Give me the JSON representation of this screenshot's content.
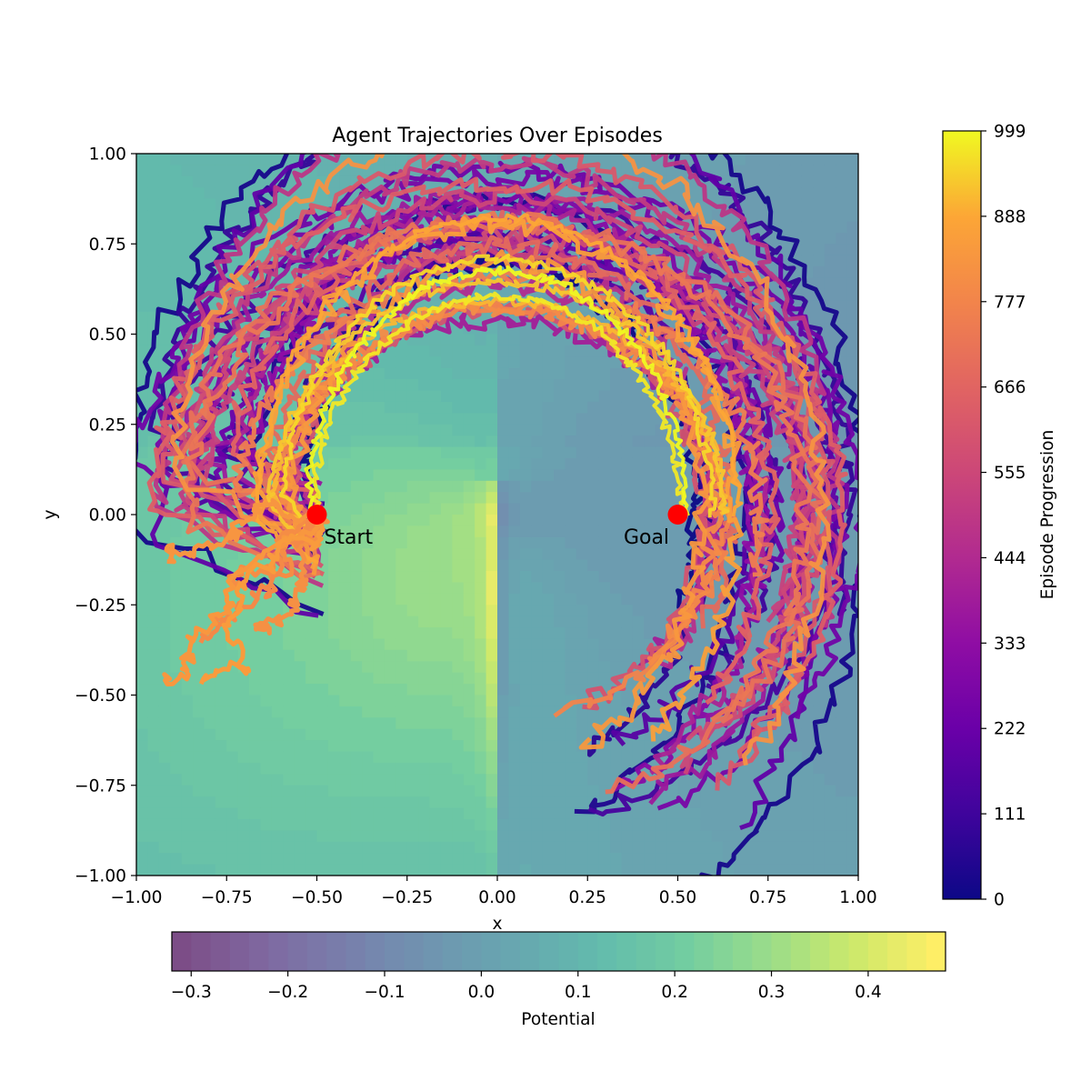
{
  "chart_data": {
    "type": "line",
    "title": "Agent Trajectories Over Episodes",
    "xlabel": "x",
    "ylabel": "y",
    "xlim": [
      -1.0,
      1.0
    ],
    "ylim": [
      -1.0,
      1.0
    ],
    "x_ticks": [
      "−1.00",
      "−0.75",
      "−0.50",
      "−0.25",
      "0.00",
      "0.25",
      "0.50",
      "0.75",
      "1.00"
    ],
    "y_ticks": [
      "−1.00",
      "−0.75",
      "−0.50",
      "−0.25",
      "0.00",
      "0.25",
      "0.50",
      "0.75",
      "1.00"
    ],
    "grid": false,
    "background": {
      "kind": "filled-contour",
      "colormap": "viridis",
      "alpha": 0.7,
      "colorbar_label": "Potential",
      "colorbar_ticks": [
        "−0.3",
        "−0.2",
        "−0.1",
        "0.0",
        "0.1",
        "0.2",
        "0.3",
        "0.4"
      ],
      "range": [
        -0.32,
        0.48
      ]
    },
    "trajectories": {
      "colormap": "plasma",
      "colorbar_label": "Episode Progression",
      "colorbar_ticks": [
        "0",
        "111",
        "222",
        "333",
        "444",
        "555",
        "666",
        "777",
        "888",
        "999"
      ],
      "episodes": [
        0,
        999
      ]
    },
    "markers": [
      {
        "label": "Start",
        "x": -0.5,
        "y": 0.0,
        "color": "#ff0000"
      },
      {
        "label": "Goal",
        "x": 0.5,
        "y": 0.0,
        "color": "#ff0000"
      }
    ]
  }
}
